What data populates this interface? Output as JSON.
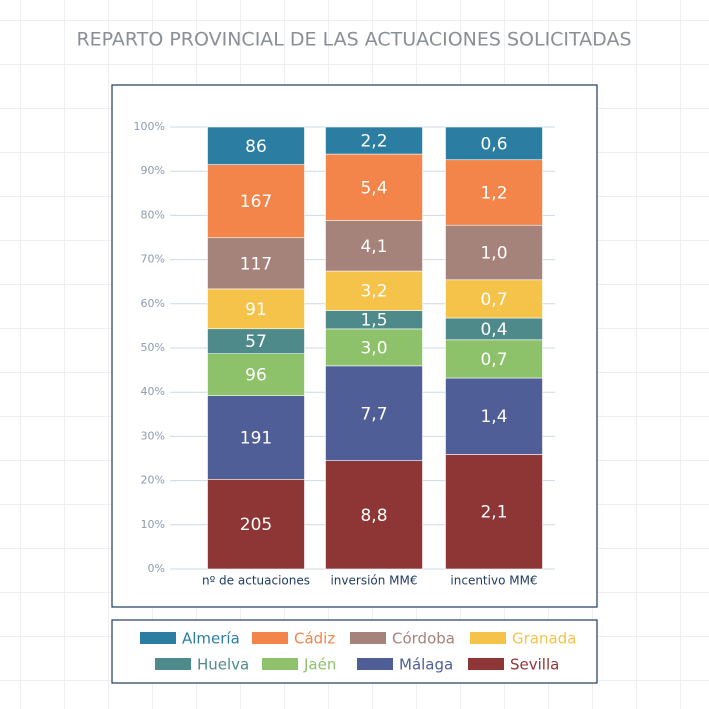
{
  "chart_data": {
    "type": "stacked_percent_bar",
    "title": "REPARTO PROVINCIAL DE LAS ACTUACIONES SOLICITADAS",
    "categories": [
      "nº de actuaciones",
      "inversión MM€",
      "incentivo MM€"
    ],
    "series": [
      {
        "name": "Almería",
        "color": "#2b7ea1",
        "values": [
          86,
          2.2,
          0.6
        ],
        "value_labels": [
          "86",
          "2,2",
          "0,6"
        ]
      },
      {
        "name": "Cádiz",
        "color": "#f4854a",
        "values": [
          167,
          5.4,
          1.2
        ],
        "value_labels": [
          "167",
          "5,4",
          "1,2"
        ]
      },
      {
        "name": "Córdoba",
        "color": "#a5827a",
        "values": [
          117,
          4.1,
          1.0
        ],
        "value_labels": [
          "117",
          "4,1",
          "1,0"
        ]
      },
      {
        "name": "Granada",
        "color": "#f5c24a",
        "values": [
          91,
          3.2,
          0.7
        ],
        "value_labels": [
          "91",
          "3,2",
          "0,7"
        ]
      },
      {
        "name": "Huelva",
        "color": "#4e8a8a",
        "values": [
          57,
          1.5,
          0.4
        ],
        "value_labels": [
          "57",
          "1,5",
          "0,4"
        ]
      },
      {
        "name": "Jaén",
        "color": "#8dc26b",
        "values": [
          96,
          3.0,
          0.7
        ],
        "value_labels": [
          "96",
          "3,0",
          "0,7"
        ]
      },
      {
        "name": "Málaga",
        "color": "#4f5e96",
        "values": [
          191,
          7.7,
          1.4
        ],
        "value_labels": [
          "191",
          "7,7",
          "1,4"
        ]
      },
      {
        "name": "Sevilla",
        "color": "#8e3535",
        "values": [
          205,
          8.8,
          2.1
        ],
        "value_labels": [
          "205",
          "8,8",
          "2,1"
        ]
      }
    ],
    "ylim": [
      0,
      100
    ],
    "yticks": [
      {
        "value": 0,
        "label": "0%"
      },
      {
        "value": 10,
        "label": "10%"
      },
      {
        "value": 20,
        "label": "20%"
      },
      {
        "value": 30,
        "label": "30%"
      },
      {
        "value": 40,
        "label": "40%"
      },
      {
        "value": 50,
        "label": "50%"
      },
      {
        "value": 60,
        "label": "60%"
      },
      {
        "value": 70,
        "label": "70%"
      },
      {
        "value": 80,
        "label": "80%"
      },
      {
        "value": 90,
        "label": "90%"
      },
      {
        "value": 100,
        "label": "100%"
      }
    ],
    "grid": true
  }
}
